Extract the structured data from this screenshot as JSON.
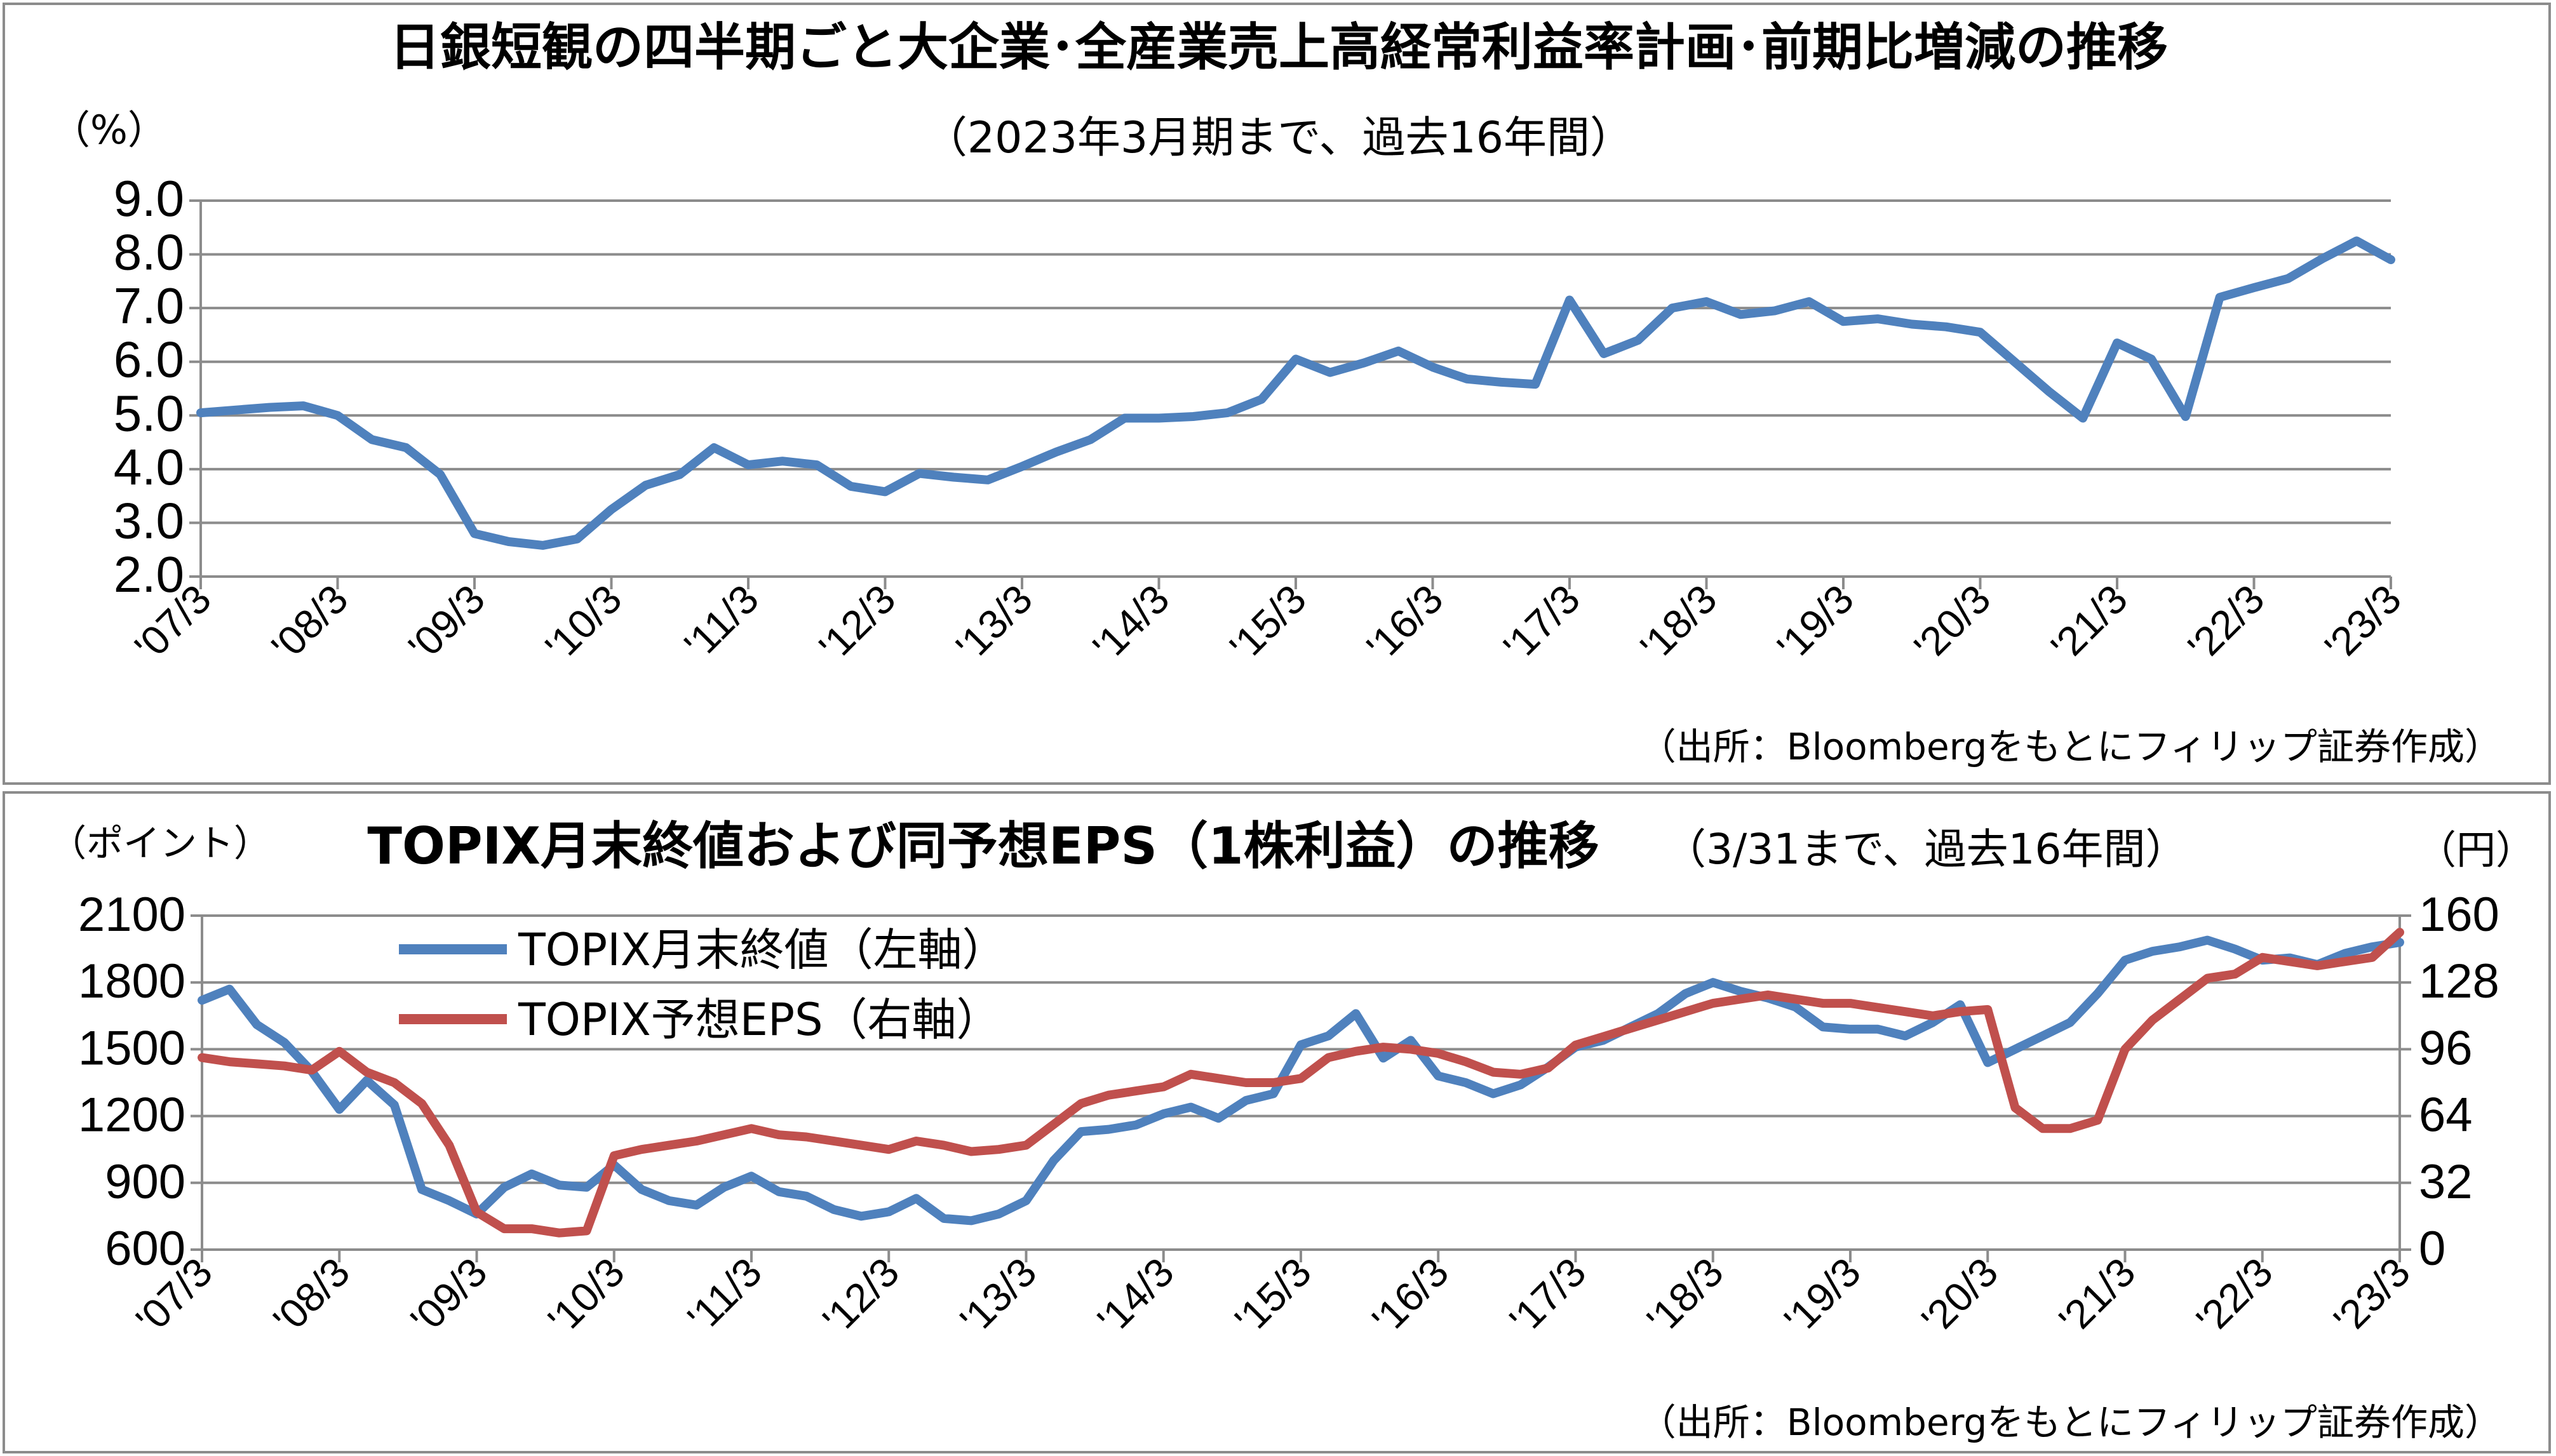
{
  "chart_data": [
    {
      "type": "line",
      "title": "日銀短観の四半期ごと大企業･全産業売上高経常利益率計画･前期比増減の推移",
      "subtitle": "（2023年3月期まで、過去16年間）",
      "yunit": "（%）",
      "source": "（出所：Bloombergをもとにフィリップ証券作成）",
      "ylim": [
        2.0,
        9.0
      ],
      "yticks": [
        "9.0",
        "8.0",
        "7.0",
        "6.0",
        "5.0",
        "4.0",
        "3.0",
        "2.0"
      ],
      "xticks": [
        "'07/3",
        "'08/3",
        "'09/3",
        "'10/3",
        "'11/3",
        "'12/3",
        "'13/3",
        "'14/3",
        "'15/3",
        "'16/3",
        "'17/3",
        "'18/3",
        "'19/3",
        "'20/3",
        "'21/3",
        "'22/3",
        "'23/3"
      ],
      "grid": true,
      "color": "#4f81bd",
      "series": [
        {
          "x": [
            0,
            0.25,
            0.5,
            0.75,
            1,
            1.25,
            1.5,
            1.75,
            2,
            2.25,
            2.5,
            2.75,
            3,
            3.25,
            3.5,
            3.75,
            4,
            4.25,
            4.5,
            4.75,
            5,
            5.25,
            5.5,
            5.75,
            6,
            6.25,
            6.5,
            6.75,
            7,
            7.25,
            7.5,
            7.75,
            8,
            8.25,
            8.5,
            8.75,
            9,
            9.25,
            9.5,
            9.75,
            10,
            10.25,
            10.5,
            10.75,
            11,
            11.25,
            11.5,
            11.75,
            12,
            12.25,
            12.5,
            12.75,
            13,
            13.25,
            13.5,
            13.75,
            14,
            14.25,
            14.5,
            14.75,
            15,
            15.25,
            15.5,
            15.75,
            16
          ],
          "values": [
            5.05,
            5.1,
            5.15,
            5.18,
            5.0,
            4.55,
            4.4,
            3.9,
            2.8,
            2.65,
            2.58,
            2.7,
            3.25,
            3.7,
            3.9,
            4.4,
            4.08,
            4.15,
            4.08,
            3.68,
            3.58,
            3.92,
            3.85,
            3.8,
            4.05,
            4.32,
            4.55,
            4.95,
            4.95,
            4.98,
            5.05,
            5.3,
            6.05,
            5.8,
            5.98,
            6.2,
            5.9,
            5.68,
            5.62,
            5.58,
            7.15,
            6.15,
            6.4,
            7.0,
            7.12,
            6.88,
            6.95,
            7.12,
            6.75,
            6.8,
            6.7,
            6.65,
            6.55,
            6.0,
            5.45,
            4.95,
            6.35,
            6.05,
            4.98,
            7.2,
            7.38,
            7.55,
            7.92,
            8.25,
            7.9
          ]
        }
      ]
    },
    {
      "type": "line",
      "title": "TOPIX月末終値および同予想EPS（1株利益）の推移",
      "subtitle": "（3/31まで、過去16年間）",
      "y1unit": "（ポイント）",
      "y2unit": "（円）",
      "source": "（出所：Bloombergをもとにフィリップ証券作成）",
      "ylim": [
        600,
        2100
      ],
      "y2lim": [
        0,
        160
      ],
      "yticks": [
        "2100",
        "1800",
        "1500",
        "1200",
        "900",
        "600"
      ],
      "y2ticks": [
        "160",
        "128",
        "96",
        "64",
        "32",
        "0"
      ],
      "xticks": [
        "'07/3",
        "'08/3",
        "'09/3",
        "'10/3",
        "'11/3",
        "'12/3",
        "'13/3",
        "'14/3",
        "'15/3",
        "'16/3",
        "'17/3",
        "'18/3",
        "'19/3",
        "'20/3",
        "'21/3",
        "'22/3",
        "'23/3"
      ],
      "grid": true,
      "legend": "top-left",
      "series": [
        {
          "name": "TOPIX月末終値（左軸）",
          "axis": "left",
          "color": "#4f81bd",
          "x": [
            0,
            0.2,
            0.4,
            0.6,
            0.8,
            1.0,
            1.2,
            1.4,
            1.6,
            1.8,
            2.0,
            2.2,
            2.4,
            2.6,
            2.8,
            3.0,
            3.2,
            3.4,
            3.6,
            3.8,
            4.0,
            4.2,
            4.4,
            4.6,
            4.8,
            5.0,
            5.2,
            5.4,
            5.6,
            5.8,
            6.0,
            6.2,
            6.4,
            6.6,
            6.8,
            7.0,
            7.2,
            7.4,
            7.6,
            7.8,
            8.0,
            8.2,
            8.4,
            8.6,
            8.8,
            9.0,
            9.2,
            9.4,
            9.6,
            9.8,
            10.0,
            10.2,
            10.4,
            10.6,
            10.8,
            11.0,
            11.2,
            11.4,
            11.6,
            11.8,
            12.0,
            12.2,
            12.4,
            12.6,
            12.8,
            13.0,
            13.2,
            13.4,
            13.6,
            13.8,
            14.0,
            14.2,
            14.4,
            14.6,
            14.8,
            15.0,
            15.2,
            15.4,
            15.6,
            15.8,
            16.0
          ],
          "values": [
            1720,
            1770,
            1610,
            1530,
            1400,
            1230,
            1360,
            1250,
            870,
            820,
            760,
            880,
            940,
            890,
            880,
            980,
            870,
            820,
            800,
            880,
            930,
            860,
            840,
            780,
            750,
            770,
            830,
            740,
            730,
            760,
            820,
            1000,
            1130,
            1140,
            1160,
            1210,
            1240,
            1190,
            1270,
            1300,
            1520,
            1560,
            1660,
            1460,
            1540,
            1380,
            1350,
            1300,
            1340,
            1420,
            1510,
            1540,
            1600,
            1660,
            1750,
            1800,
            1760,
            1730,
            1690,
            1600,
            1590,
            1590,
            1560,
            1620,
            1700,
            1440,
            1500,
            1560,
            1620,
            1750,
            1900,
            1940,
            1960,
            1990,
            1950,
            1900,
            1910,
            1880,
            1930,
            1960,
            1980
          ]
        },
        {
          "name": "TOPIX予想EPS（右軸）",
          "axis": "right",
          "color": "#c0504d",
          "x": [
            0,
            0.2,
            0.4,
            0.6,
            0.8,
            1.0,
            1.2,
            1.4,
            1.6,
            1.8,
            2.0,
            2.2,
            2.4,
            2.6,
            2.8,
            3.0,
            3.2,
            3.4,
            3.6,
            3.8,
            4.0,
            4.2,
            4.4,
            4.6,
            4.8,
            5.0,
            5.2,
            5.4,
            5.6,
            5.8,
            6.0,
            6.2,
            6.4,
            6.6,
            6.8,
            7.0,
            7.2,
            7.4,
            7.6,
            7.8,
            8.0,
            8.2,
            8.4,
            8.6,
            8.8,
            9.0,
            9.2,
            9.4,
            9.6,
            9.8,
            10.0,
            10.2,
            10.4,
            10.6,
            10.8,
            11.0,
            11.2,
            11.4,
            11.6,
            11.8,
            12.0,
            12.2,
            12.4,
            12.6,
            12.8,
            13.0,
            13.2,
            13.4,
            13.6,
            13.8,
            14.0,
            14.2,
            14.4,
            14.6,
            14.8,
            15.0,
            15.2,
            15.4,
            15.6,
            15.8,
            16.0
          ],
          "values": [
            92,
            90,
            89,
            88,
            86,
            95,
            85,
            80,
            70,
            50,
            18,
            10,
            10,
            8,
            9,
            45,
            48,
            50,
            52,
            55,
            58,
            55,
            54,
            52,
            50,
            48,
            52,
            50,
            47,
            48,
            50,
            60,
            70,
            74,
            76,
            78,
            84,
            82,
            80,
            80,
            82,
            92,
            95,
            97,
            96,
            94,
            90,
            85,
            84,
            87,
            98,
            102,
            106,
            110,
            114,
            118,
            120,
            122,
            120,
            118,
            118,
            116,
            114,
            112,
            114,
            115,
            68,
            58,
            58,
            62,
            96,
            110,
            120,
            130,
            132,
            140,
            138,
            136,
            138,
            140,
            152
          ]
        }
      ]
    }
  ]
}
